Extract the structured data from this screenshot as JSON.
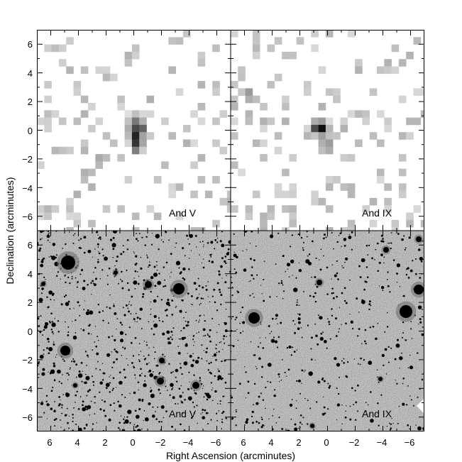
{
  "figure": {
    "xlabel": "Right Ascension (arcminutes)",
    "ylabel": "Declination (arcminutes)",
    "x_ticks": [
      "6",
      "4",
      "2",
      "0",
      "−2",
      "−4",
      "−6"
    ],
    "y_ticks": [
      "6",
      "4",
      "2",
      "0",
      "−2",
      "−4",
      "−6"
    ],
    "x_range": [
      7,
      -7
    ],
    "y_range": [
      -7,
      7
    ],
    "panels": [
      {
        "id": "top-left",
        "label": "And V",
        "kind": "density-map"
      },
      {
        "id": "top-right",
        "label": "And IX",
        "kind": "density-map"
      },
      {
        "id": "bottom-left",
        "label": "And V",
        "kind": "sky-image"
      },
      {
        "id": "bottom-right",
        "label": "And IX",
        "kind": "sky-image"
      }
    ]
  },
  "colors": {
    "ink": "#000000",
    "paper": "#ffffff",
    "sky_background": "#a9a9a9"
  }
}
